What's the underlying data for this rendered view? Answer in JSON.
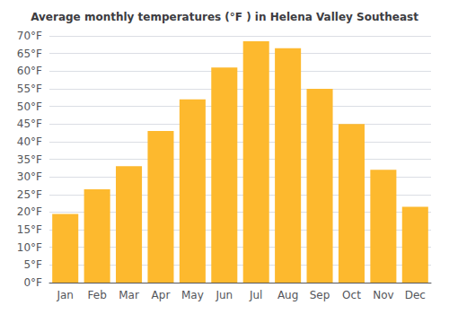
{
  "chart_data": {
    "type": "bar",
    "title": "Average monthly temperatures (°F ) in Helena Valley Southeast",
    "categories": [
      "Jan",
      "Feb",
      "Mar",
      "Apr",
      "May",
      "Jun",
      "Jul",
      "Aug",
      "Sep",
      "Oct",
      "Nov",
      "Dec"
    ],
    "values": [
      19.5,
      26.5,
      33.0,
      43.0,
      52.0,
      61.0,
      68.5,
      66.5,
      55.0,
      45.0,
      32.0,
      21.5
    ],
    "color": "#FDB92E",
    "ylim": [
      0,
      70
    ],
    "yticks": [
      {
        "value": 0,
        "label": "0°F"
      },
      {
        "value": 5,
        "label": "5°F"
      },
      {
        "value": 10,
        "label": "10°F"
      },
      {
        "value": 15,
        "label": "15°F"
      },
      {
        "value": 20,
        "label": "20°F"
      },
      {
        "value": 25,
        "label": "25°F"
      },
      {
        "value": 30,
        "label": "30°F"
      },
      {
        "value": 35,
        "label": "35°F"
      },
      {
        "value": 40,
        "label": "40°F"
      },
      {
        "value": 45,
        "label": "45°F"
      },
      {
        "value": 50,
        "label": "50°F"
      },
      {
        "value": 55,
        "label": "55°F"
      },
      {
        "value": 60,
        "label": "60°F"
      },
      {
        "value": 65,
        "label": "65°F"
      },
      {
        "value": 70,
        "label": "70°F"
      }
    ],
    "grid": true
  }
}
